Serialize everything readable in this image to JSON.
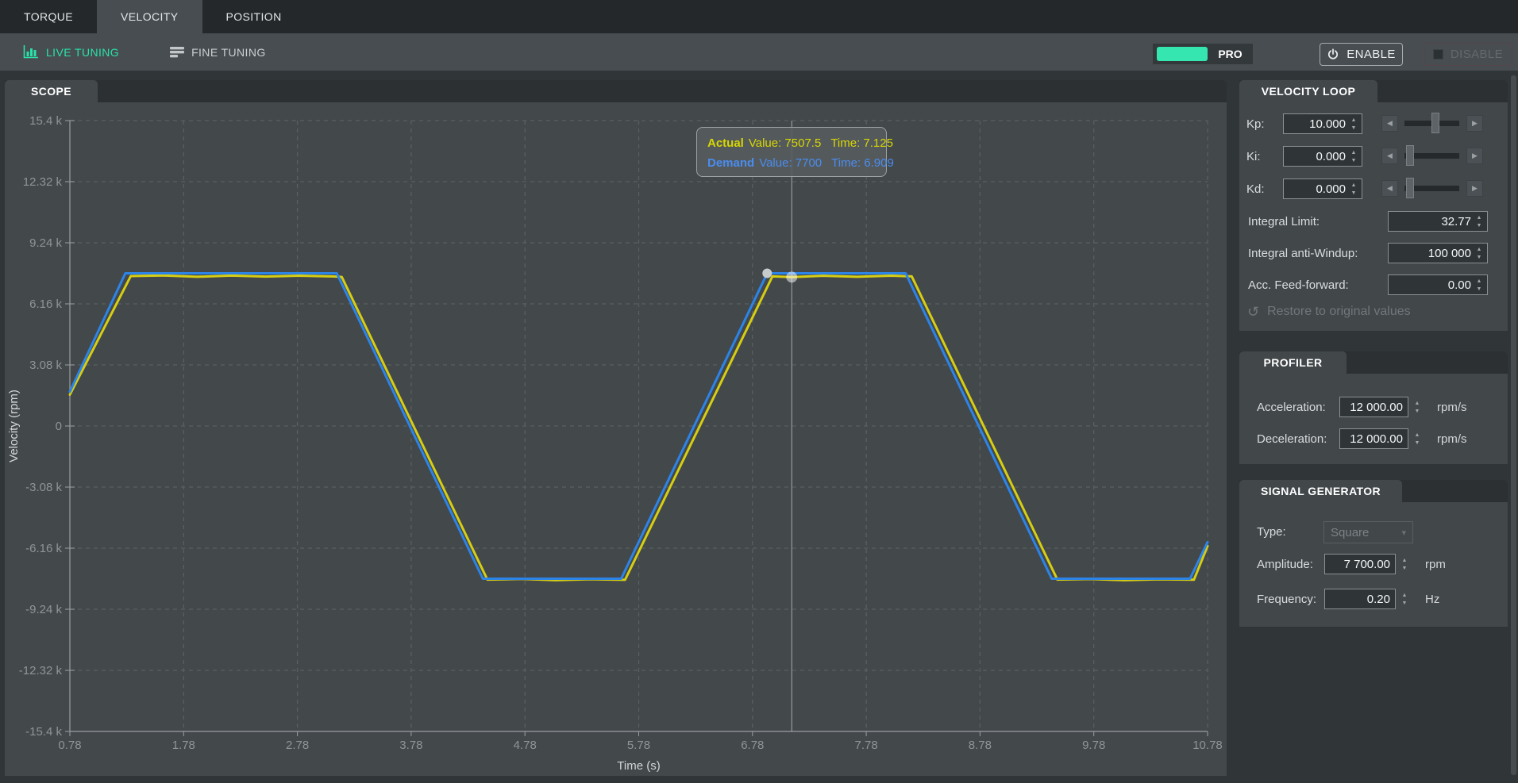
{
  "tabs": [
    {
      "label": "TORQUE",
      "active": false
    },
    {
      "label": "VELOCITY",
      "active": true
    },
    {
      "label": "POSITION",
      "active": false
    }
  ],
  "toolbar": {
    "live_tuning": "LIVE TUNING",
    "fine_tuning": "FINE TUNING",
    "pro_label": "PRO",
    "enable_label": "ENABLE",
    "disable_label": "DISABLE"
  },
  "scope": {
    "title": "SCOPE",
    "tooltip": {
      "actual": {
        "name": "Actual",
        "value": "Value: 7507.5",
        "time": "Time: 7.125"
      },
      "demand": {
        "name": "Demand",
        "value": "Value: 7700",
        "time": "Time: 6.909"
      }
    }
  },
  "chart_data": {
    "type": "line",
    "title": "Scope",
    "xlabel": "Time (s)",
    "ylabel": "Velocity (rpm)",
    "xlim": [
      0.78,
      10.78
    ],
    "ylim": [
      -15400,
      15400
    ],
    "grid": "dashed",
    "x_ticks": [
      {
        "v": 0.78,
        "label": "0.78"
      },
      {
        "v": 1.78,
        "label": "1.78"
      },
      {
        "v": 2.78,
        "label": "2.78"
      },
      {
        "v": 3.78,
        "label": "3.78"
      },
      {
        "v": 4.78,
        "label": "4.78"
      },
      {
        "v": 5.78,
        "label": "5.78"
      },
      {
        "v": 6.78,
        "label": "6.78"
      },
      {
        "v": 7.78,
        "label": "7.78"
      },
      {
        "v": 8.78,
        "label": "8.78"
      },
      {
        "v": 9.78,
        "label": "9.78"
      },
      {
        "v": 10.78,
        "label": "10.78"
      }
    ],
    "y_ticks": [
      {
        "v": 15400,
        "label": "15.4 k"
      },
      {
        "v": 12320,
        "label": "12.32 k"
      },
      {
        "v": 9240,
        "label": "9.24 k"
      },
      {
        "v": 6160,
        "label": "6.16 k"
      },
      {
        "v": 3080,
        "label": "3.08 k"
      },
      {
        "v": 0,
        "label": "0"
      },
      {
        "v": -3080,
        "label": "-3.08 k"
      },
      {
        "v": -6160,
        "label": "-6.16 k"
      },
      {
        "v": -9240,
        "label": "-9.24 k"
      },
      {
        "v": -12320,
        "label": "-12.32 k"
      },
      {
        "v": -15400,
        "label": "-15.4 k"
      }
    ],
    "cursor_time": 7.125,
    "markers": [
      {
        "series": "Demand",
        "t": 6.909,
        "v": 7700,
        "fill": "#c7cbcc",
        "r": 6
      },
      {
        "series": "Actual",
        "t": 7.125,
        "v": 7507.5,
        "fill": "rgba(255,255,255,0.5)",
        "r": 7
      }
    ],
    "series": [
      {
        "name": "Actual",
        "color": "#d7ce12",
        "points": [
          [
            0.78,
            1580
          ],
          [
            1.315,
            7560
          ],
          [
            1.6,
            7590
          ],
          [
            1.9,
            7525
          ],
          [
            2.2,
            7585
          ],
          [
            2.5,
            7535
          ],
          [
            2.8,
            7580
          ],
          [
            3.1,
            7540
          ],
          [
            3.17,
            7515
          ],
          [
            4.45,
            -7745
          ],
          [
            4.75,
            -7710
          ],
          [
            5.05,
            -7775
          ],
          [
            5.35,
            -7725
          ],
          [
            5.66,
            -7755
          ],
          [
            6.955,
            7545
          ],
          [
            7.125,
            7507.5
          ],
          [
            7.4,
            7575
          ],
          [
            7.7,
            7525
          ],
          [
            8.0,
            7580
          ],
          [
            8.18,
            7545
          ],
          [
            9.46,
            -7745
          ],
          [
            9.75,
            -7715
          ],
          [
            10.05,
            -7775
          ],
          [
            10.35,
            -7730
          ],
          [
            10.66,
            -7750
          ],
          [
            10.78,
            -6050
          ]
        ]
      },
      {
        "name": "Demand",
        "color": "#2d84e8",
        "points": [
          [
            0.78,
            1730
          ],
          [
            1.268,
            7700
          ],
          [
            3.126,
            7700
          ],
          [
            4.41,
            -7700
          ],
          [
            5.626,
            -7700
          ],
          [
            6.909,
            7700
          ],
          [
            8.126,
            7700
          ],
          [
            9.41,
            -7700
          ],
          [
            10.626,
            -7700
          ],
          [
            10.78,
            -5850
          ]
        ]
      }
    ]
  },
  "velocity_loop": {
    "title": "VELOCITY LOOP",
    "rows": [
      {
        "label": "Kp:",
        "value": "10.000",
        "slider_pos": 0.57
      },
      {
        "label": "Ki:",
        "value": "0.000",
        "slider_pos": 0.03
      },
      {
        "label": "Kd:",
        "value": "0.000",
        "slider_pos": 0.03
      }
    ],
    "fields": [
      {
        "label": "Integral Limit:",
        "value": "32.77"
      },
      {
        "label": "Integral anti-Windup:",
        "value": "100 000"
      },
      {
        "label": "Acc. Feed-forward:",
        "value": "0.00"
      }
    ],
    "restore_label": "Restore to original values"
  },
  "profiler": {
    "title": "PROFILER",
    "fields": [
      {
        "label": "Acceleration:",
        "value": "12 000.00",
        "unit": "rpm/s"
      },
      {
        "label": "Deceleration:",
        "value": "12 000.00",
        "unit": "rpm/s"
      }
    ]
  },
  "signal_generator": {
    "title": "SIGNAL GENERATOR",
    "type_label": "Type:",
    "type_value": "Square",
    "fields": [
      {
        "label": "Amplitude:",
        "value": "7 700.00",
        "unit": "rpm"
      },
      {
        "label": "Frequency:",
        "value": "0.20",
        "unit": "Hz"
      }
    ]
  },
  "icons": {
    "restore": "↺",
    "dropdown_caret": "▾",
    "spin_up": "▲",
    "spin_down": "▼",
    "slider_left": "◀",
    "slider_right": "▶"
  },
  "colors": {
    "accent_teal": "#2ae3a9",
    "demand_blue": "#2d84e8",
    "actual_yellow": "#d7ce12",
    "grid": "#5a5f62",
    "axis": "#9b9fa2",
    "tick_text": "#8f9497"
  }
}
